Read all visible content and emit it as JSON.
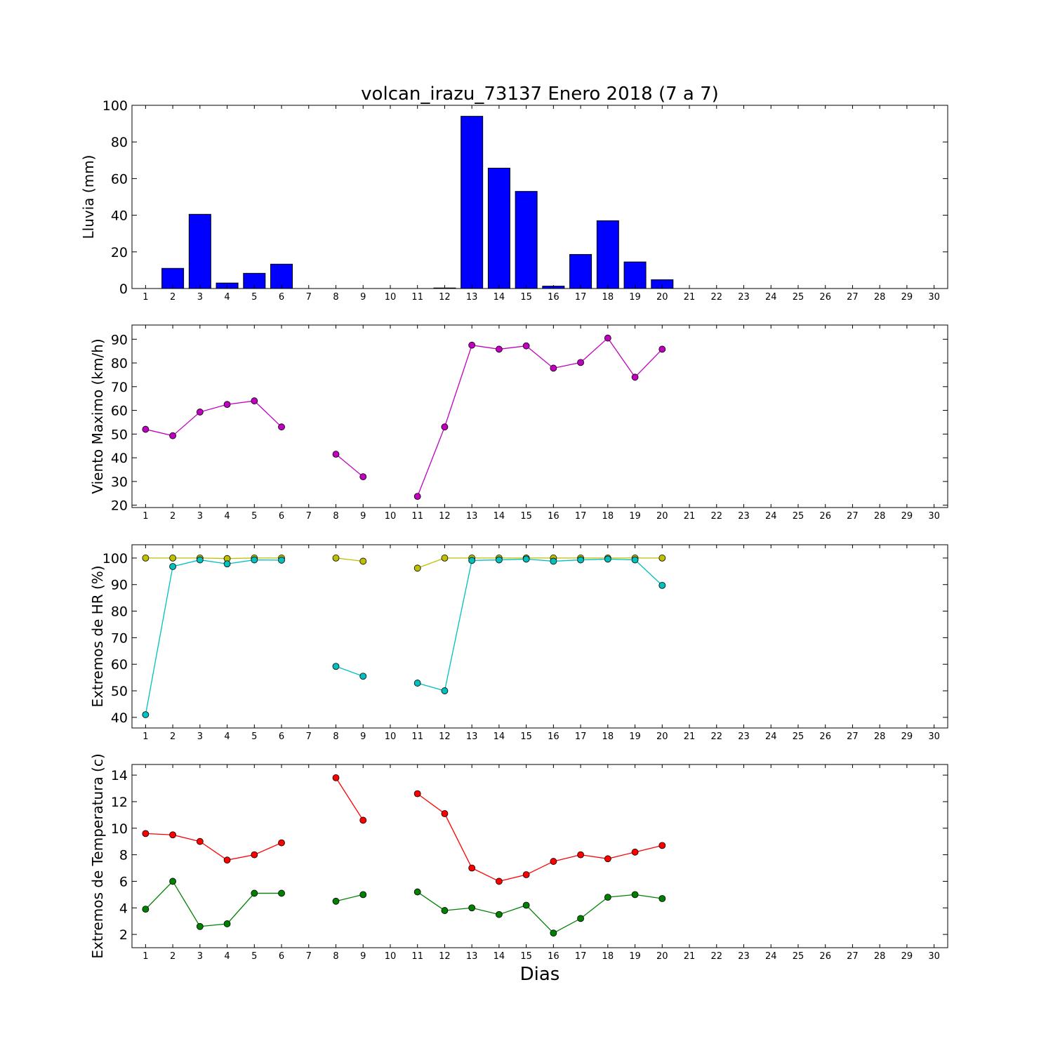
{
  "chart_data": [
    {
      "type": "bar",
      "title": "volcan_irazu_73137 Enero 2018  (7 a 7)",
      "ylabel": "Lluvia (mm)",
      "xlabel": "",
      "x": [
        1,
        2,
        3,
        4,
        5,
        6,
        7,
        8,
        9,
        10,
        11,
        12,
        13,
        14,
        15,
        16,
        17,
        18,
        19,
        20,
        21,
        22,
        23,
        24,
        25,
        26,
        27,
        28,
        29,
        30
      ],
      "xlim": [
        0.5,
        30.5
      ],
      "ylim": [
        0,
        100
      ],
      "yticks": [
        0,
        20,
        40,
        60,
        80,
        100
      ],
      "series": [
        {
          "color": "#0000ff",
          "values": [
            0,
            11,
            40.5,
            3,
            8.3,
            13.3,
            0,
            0,
            0,
            0,
            0,
            0.3,
            94,
            65.7,
            53,
            1.3,
            18.6,
            37,
            14.5,
            4.8,
            null,
            null,
            null,
            null,
            null,
            null,
            null,
            null,
            null,
            null
          ]
        }
      ]
    },
    {
      "type": "line",
      "title": "",
      "ylabel": "Viento Maximo (km/h)",
      "xlabel": "",
      "x": [
        1,
        2,
        3,
        4,
        5,
        6,
        7,
        8,
        9,
        10,
        11,
        12,
        13,
        14,
        15,
        16,
        17,
        18,
        19,
        20,
        21,
        22,
        23,
        24,
        25,
        26,
        27,
        28,
        29,
        30
      ],
      "xlim": [
        0.5,
        30.5
      ],
      "ylim": [
        19,
        96
      ],
      "yticks": [
        20,
        30,
        40,
        50,
        60,
        70,
        80,
        90
      ],
      "series": [
        {
          "color": "#bf00bf",
          "values": [
            52,
            49.3,
            59.3,
            62.5,
            64,
            53,
            null,
            41.5,
            32,
            null,
            23.7,
            53,
            87.5,
            85.8,
            87.2,
            77.8,
            80.2,
            90.5,
            74,
            85.8,
            null,
            null,
            null,
            null,
            null,
            null,
            null,
            null,
            null,
            null
          ]
        }
      ]
    },
    {
      "type": "line",
      "title": "",
      "ylabel": "Extremos de HR (%)",
      "xlabel": "",
      "x": [
        1,
        2,
        3,
        4,
        5,
        6,
        7,
        8,
        9,
        10,
        11,
        12,
        13,
        14,
        15,
        16,
        17,
        18,
        19,
        20,
        21,
        22,
        23,
        24,
        25,
        26,
        27,
        28,
        29,
        30
      ],
      "xlim": [
        0.5,
        30.5
      ],
      "ylim": [
        36,
        105
      ],
      "yticks": [
        40,
        50,
        60,
        70,
        80,
        90,
        100
      ],
      "series": [
        {
          "color": "#bfbf00",
          "values": [
            100,
            100,
            100,
            99.8,
            100,
            100,
            null,
            100,
            98.8,
            null,
            96.2,
            100,
            100,
            100,
            100,
            100,
            100,
            100,
            100,
            100,
            null,
            null,
            null,
            null,
            null,
            null,
            null,
            null,
            null,
            null
          ]
        },
        {
          "color": "#00bfbf",
          "values": [
            41,
            96.8,
            99.3,
            97.8,
            99.3,
            99.2,
            null,
            59.2,
            55.5,
            null,
            52.9,
            50,
            99.1,
            99.3,
            99.6,
            98.8,
            99.3,
            99.6,
            99.3,
            89.7,
            null,
            null,
            null,
            null,
            null,
            null,
            null,
            null,
            null,
            null
          ]
        }
      ]
    },
    {
      "type": "line",
      "title": "",
      "ylabel": "Extremos de Temperatura (c)",
      "xlabel": "Dias",
      "x": [
        1,
        2,
        3,
        4,
        5,
        6,
        7,
        8,
        9,
        10,
        11,
        12,
        13,
        14,
        15,
        16,
        17,
        18,
        19,
        20,
        21,
        22,
        23,
        24,
        25,
        26,
        27,
        28,
        29,
        30
      ],
      "xlim": [
        0.5,
        30.5
      ],
      "ylim": [
        1,
        14.8
      ],
      "yticks": [
        2,
        4,
        6,
        8,
        10,
        12,
        14
      ],
      "series": [
        {
          "color": "#ff0000",
          "values": [
            9.6,
            9.5,
            9,
            7.6,
            8,
            8.9,
            null,
            13.8,
            10.6,
            null,
            12.6,
            11.1,
            7,
            6,
            6.5,
            7.5,
            8,
            7.7,
            8.2,
            8.7,
            null,
            null,
            null,
            null,
            null,
            null,
            null,
            null,
            null,
            null
          ]
        },
        {
          "color": "#008000",
          "values": [
            3.9,
            6,
            2.6,
            2.8,
            5.1,
            5.1,
            null,
            4.5,
            5,
            null,
            5.2,
            3.8,
            4,
            3.5,
            4.2,
            2.1,
            3.2,
            4.8,
            5,
            4.7,
            null,
            null,
            null,
            null,
            null,
            null,
            null,
            null,
            null,
            null
          ]
        }
      ]
    }
  ]
}
